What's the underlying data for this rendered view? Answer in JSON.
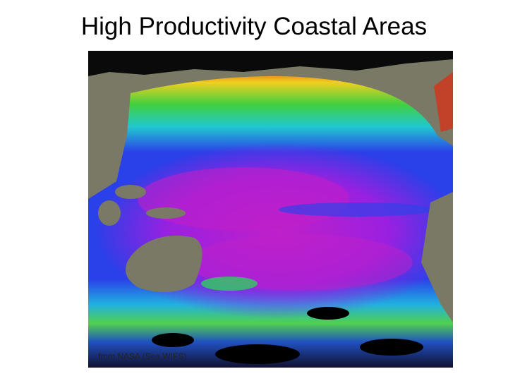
{
  "title": "High Productivity Coastal Areas",
  "image": {
    "caption": "from NASA (Sea.WIFS)"
  }
}
